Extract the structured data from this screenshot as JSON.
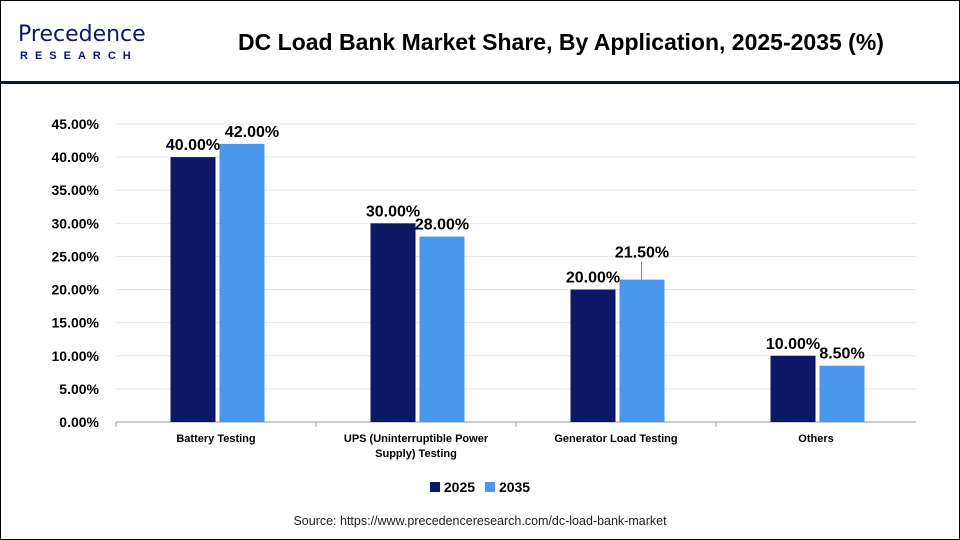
{
  "brand": {
    "name": "Precedence",
    "sub": "RESEARCH"
  },
  "colors": {
    "s2025": "#0c1766",
    "s2035": "#4a98ee",
    "brand": "#0c1445"
  },
  "chart_data": {
    "type": "bar",
    "title": "DC Load Bank Market Share, By Application, 2025-2035 (%)",
    "categories": [
      "Battery Testing",
      "UPS (Uninterruptible Power Supply) Testing",
      "Generator Load Testing",
      "Others"
    ],
    "category_lines": [
      [
        "Battery Testing"
      ],
      [
        "UPS (Uninterruptible Power",
        "Supply) Testing"
      ],
      [
        "Generator Load Testing"
      ],
      [
        "Others"
      ]
    ],
    "series": [
      {
        "name": "2025",
        "values": [
          40.0,
          30.0,
          20.0,
          10.0
        ],
        "labels": [
          "40.00%",
          "30.00%",
          "20.00%",
          "10.00%"
        ]
      },
      {
        "name": "2035",
        "values": [
          42.0,
          28.0,
          21.5,
          8.5
        ],
        "labels": [
          "42.00%",
          "28.00%",
          "21.50%",
          "8.50%"
        ]
      }
    ],
    "ylim": [
      0,
      45
    ],
    "yticks": [
      "0.00%",
      "5.00%",
      "10.00%",
      "15.00%",
      "20.00%",
      "25.00%",
      "30.00%",
      "35.00%",
      "40.00%",
      "45.00%"
    ],
    "grid": true,
    "legend": "bottom"
  },
  "source": "Source: https://www.precedenceresearch.com/dc-load-bank-market"
}
